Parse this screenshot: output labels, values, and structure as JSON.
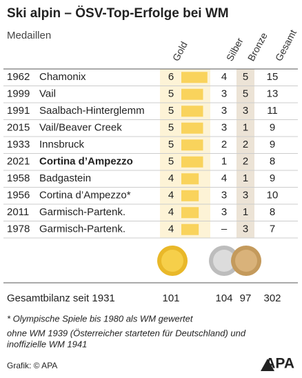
{
  "header": {
    "title": "Ski alpin – ÖSV-Top-Erfolge bei WM",
    "subtitle": "Medaillen"
  },
  "table": {
    "columns": [
      "Gold",
      "Silber",
      "Bronze",
      "Gesamt"
    ],
    "rows": [
      [
        "1962",
        "Chamonix",
        6,
        4,
        5,
        15
      ],
      [
        "1999",
        "Vail",
        5,
        3,
        5,
        13
      ],
      [
        "1991",
        "Saalbach-Hinterglemm",
        5,
        3,
        3,
        11
      ],
      [
        "2015",
        "Vail/Beaver Creek",
        5,
        3,
        1,
        9
      ],
      [
        "1933",
        "Innsbruck",
        5,
        2,
        2,
        9
      ],
      [
        "2021",
        "Cortina d’Ampezzo",
        5,
        1,
        2,
        8
      ],
      [
        "1958",
        "Badgastein",
        4,
        4,
        1,
        9
      ],
      [
        "1956",
        "Cortina d’Ampezzo*",
        4,
        3,
        3,
        10
      ],
      [
        "2011",
        "Garmisch-Partenk.",
        4,
        3,
        1,
        8
      ],
      [
        "1978",
        "Garmisch-Partenk.",
        4,
        "–",
        3,
        7
      ]
    ]
  },
  "total": {
    "label": "Gesamtbilanz seit 1931",
    "values": [
      101,
      104,
      97,
      302
    ]
  },
  "footnotes": [
    "* Olympische Spiele bis 1980 als WM gewertet",
    "ohne WM 1939 (Österreicher starteten für Deutschland) und",
    "inoffizielle WM 1941"
  ],
  "source": "Grafik: © APA",
  "logo": "APA"
}
